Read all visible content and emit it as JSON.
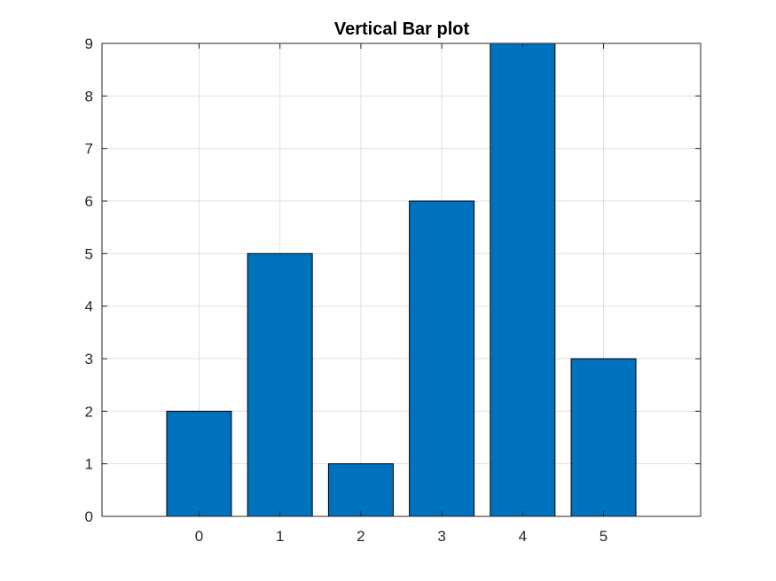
{
  "chart_data": {
    "type": "bar",
    "title": "Vertical Bar plot",
    "xlabel": "",
    "ylabel": "",
    "categories": [
      "0",
      "1",
      "2",
      "3",
      "4",
      "5"
    ],
    "x": [
      0,
      1,
      2,
      3,
      4,
      5
    ],
    "values": [
      2,
      5,
      1,
      6,
      9,
      3
    ],
    "xlim": [
      -1.2,
      6.2
    ],
    "ylim": [
      0,
      9
    ],
    "yticks": [
      0,
      1,
      2,
      3,
      4,
      5,
      6,
      7,
      8,
      9
    ],
    "xticks": [
      0,
      1,
      2,
      3,
      4,
      5
    ],
    "grid": true,
    "legend": "none",
    "bar_color": "#0072BD",
    "bar_edge_color": "#000000",
    "grid_color": "#dfdfdf",
    "axis_color": "#262626"
  }
}
